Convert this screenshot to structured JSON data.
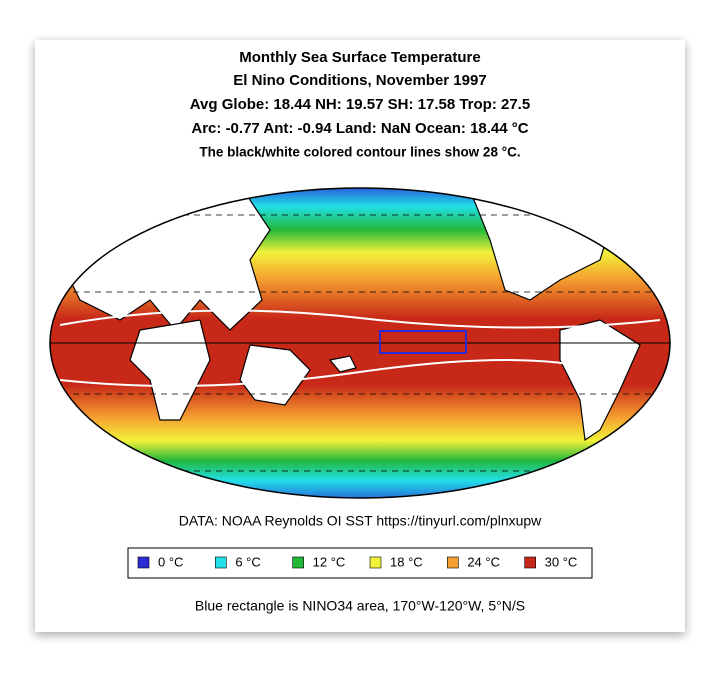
{
  "header": {
    "lines": [
      "Monthly Sea Surface Temperature",
      "El Nino Conditions, November 1997",
      "Avg Globe: 18.44  NH: 19.57  SH: 17.58  Trop: 27.5",
      "Arc: -0.77  Ant: -0.94  Land: NaN Ocean: 18.44 °C",
      "The black/white colored contour lines show 28 °C."
    ]
  },
  "source": "DATA: NOAA Reynolds OI SST https://tinyurl.com/plnxupw",
  "legend": [
    {
      "label": "0 °C",
      "color": "#2b2bd6"
    },
    {
      "label": "6 °C",
      "color": "#22e0e8"
    },
    {
      "label": "12 °C",
      "color": "#22b83a"
    },
    {
      "label": "18 °C",
      "color": "#f2f23a"
    },
    {
      "label": "24 °C",
      "color": "#f5a030"
    },
    {
      "label": "30 °C",
      "color": "#c82818"
    }
  ],
  "footnote": "Blue rectangle is NINO34 area, 170°W-120°W, 5°N/S"
}
